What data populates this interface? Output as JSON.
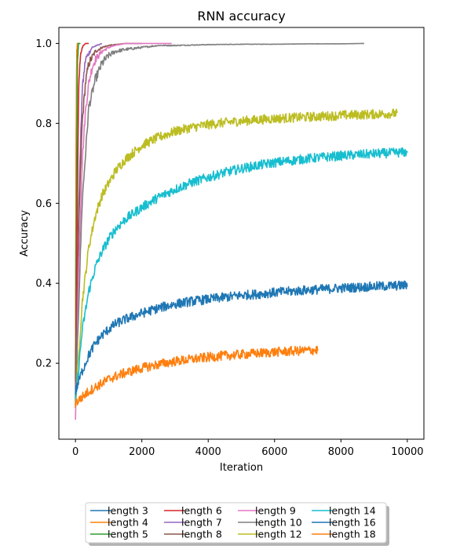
{
  "chart_data": {
    "type": "line",
    "title": "RNN accuracy",
    "xlabel": "Iteration",
    "ylabel": "Accuracy",
    "xlim": [
      -500,
      10500
    ],
    "ylim": [
      0.01,
      1.04
    ],
    "xticks": [
      0,
      2000,
      4000,
      6000,
      8000,
      10000
    ],
    "xtick_labels": [
      "0",
      "2000",
      "4000",
      "6000",
      "8000",
      "10000"
    ],
    "yticks": [
      0.2,
      0.4,
      0.6,
      0.8,
      1.0
    ],
    "ytick_labels": [
      "0.2",
      "0.4",
      "0.6",
      "0.8",
      "1.0"
    ],
    "grid": false,
    "legend_position": "bottom-center",
    "legend_columns": 4,
    "series": [
      {
        "name": "length 3",
        "color": "#1f77b4",
        "x": [
          0,
          20,
          40,
          60,
          100
        ],
        "y": [
          0.15,
          0.7,
          0.97,
          1.0,
          1.0
        ]
      },
      {
        "name": "length 4",
        "color": "#ff7f0e",
        "x": [
          0,
          20,
          40,
          60,
          100
        ],
        "y": [
          0.15,
          0.75,
          0.98,
          1.0,
          1.0
        ]
      },
      {
        "name": "length 5",
        "color": "#2ca02c",
        "x": [
          0,
          30,
          60,
          90,
          150
        ],
        "y": [
          0.12,
          0.6,
          0.95,
          1.0,
          1.0
        ]
      },
      {
        "name": "length 6",
        "color": "#d62728",
        "x": [
          0,
          50,
          100,
          150,
          200,
          300,
          400
        ],
        "y": [
          0.1,
          0.55,
          0.9,
          0.97,
          0.99,
          1.0,
          1.0
        ]
      },
      {
        "name": "length 7",
        "color": "#9467bd",
        "x": [
          0,
          100,
          200,
          300,
          500,
          800
        ],
        "y": [
          0.1,
          0.6,
          0.88,
          0.96,
          0.99,
          1.0
        ]
      },
      {
        "name": "length 8",
        "color": "#8c564b",
        "x": [
          0,
          100,
          200,
          300,
          400,
          600,
          800,
          1000,
          1500,
          2000
        ],
        "y": [
          0.1,
          0.55,
          0.8,
          0.9,
          0.95,
          0.98,
          0.99,
          0.995,
          1.0,
          1.0
        ]
      },
      {
        "name": "length 9",
        "color": "#e377c2",
        "x": [
          0,
          100,
          200,
          300,
          400,
          500,
          600,
          800,
          1000,
          1200,
          1500,
          2000,
          2500,
          2900
        ],
        "y": [
          0.05,
          0.45,
          0.7,
          0.83,
          0.9,
          0.94,
          0.96,
          0.98,
          0.99,
          0.995,
          1.0,
          1.0,
          1.0,
          1.0
        ]
      },
      {
        "name": "length 10",
        "color": "#7f7f7f",
        "x": [
          0,
          200,
          400,
          600,
          800,
          1000,
          1200,
          1500,
          2000,
          2500,
          3000,
          4000,
          5000,
          6000,
          7000,
          8000,
          8700
        ],
        "y": [
          0.1,
          0.6,
          0.84,
          0.91,
          0.95,
          0.97,
          0.98,
          0.985,
          0.99,
          0.995,
          0.995,
          0.997,
          0.998,
          0.998,
          0.999,
          0.999,
          1.0
        ]
      },
      {
        "name": "length 12",
        "color": "#bcbd22",
        "x": [
          0,
          200,
          400,
          600,
          800,
          1000,
          1200,
          1500,
          2000,
          2500,
          3000,
          3500,
          4000,
          4500,
          5000,
          6000,
          7000,
          8000,
          9000,
          9700
        ],
        "y": [
          0.1,
          0.35,
          0.49,
          0.57,
          0.62,
          0.65,
          0.68,
          0.71,
          0.745,
          0.765,
          0.78,
          0.79,
          0.797,
          0.802,
          0.806,
          0.812,
          0.816,
          0.82,
          0.823,
          0.825
        ]
      },
      {
        "name": "length 14",
        "color": "#17becf",
        "x": [
          0,
          200,
          400,
          600,
          800,
          1000,
          1200,
          1500,
          2000,
          2500,
          3000,
          3500,
          4000,
          4500,
          5000,
          5500,
          6000,
          7000,
          8000,
          9000,
          10000
        ],
        "y": [
          0.1,
          0.28,
          0.38,
          0.44,
          0.48,
          0.51,
          0.535,
          0.56,
          0.59,
          0.615,
          0.635,
          0.652,
          0.665,
          0.677,
          0.687,
          0.695,
          0.702,
          0.712,
          0.719,
          0.724,
          0.728
        ]
      },
      {
        "name": "length 16",
        "color": "#1f77b4",
        "x": [
          0,
          200,
          400,
          600,
          800,
          1000,
          1200,
          1500,
          2000,
          2500,
          3000,
          3500,
          4000,
          4500,
          5000,
          5500,
          6000,
          7000,
          8000,
          9000,
          10000
        ],
        "y": [
          0.13,
          0.18,
          0.22,
          0.25,
          0.27,
          0.285,
          0.298,
          0.31,
          0.325,
          0.338,
          0.348,
          0.355,
          0.36,
          0.365,
          0.37,
          0.373,
          0.377,
          0.383,
          0.388,
          0.392,
          0.395
        ]
      },
      {
        "name": "length 18",
        "color": "#ff7f0e",
        "x": [
          0,
          200,
          400,
          600,
          800,
          1000,
          1200,
          1500,
          2000,
          2500,
          3000,
          3500,
          4000,
          4500,
          5000,
          5500,
          6000,
          6500,
          7000,
          7300
        ],
        "y": [
          0.1,
          0.115,
          0.13,
          0.14,
          0.15,
          0.16,
          0.167,
          0.176,
          0.188,
          0.197,
          0.205,
          0.21,
          0.215,
          0.219,
          0.222,
          0.225,
          0.228,
          0.23,
          0.232,
          0.233
        ]
      }
    ]
  }
}
